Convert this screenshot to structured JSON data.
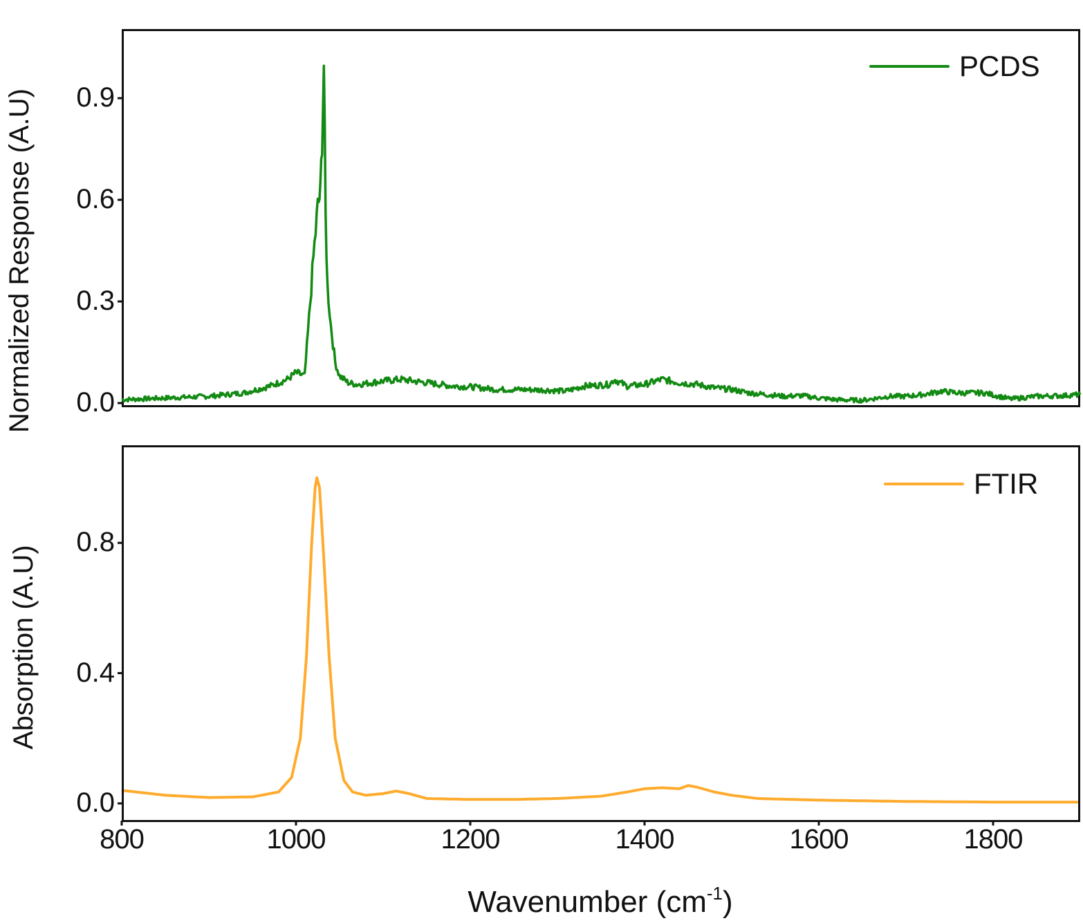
{
  "figure": {
    "xlabel_main": "Wavenumber (cm",
    "xlabel_sup": "-1",
    "xlabel_close": ")",
    "xticks": [
      "800",
      "1000",
      "1200",
      "1400",
      "1600",
      "1800"
    ]
  },
  "top_panel": {
    "ylabel": "Normalized Response (A.U)",
    "yticks": [
      "0.0",
      "0.3",
      "0.6",
      "0.9"
    ],
    "legend_label": "PCDS",
    "line_color": "#138a13"
  },
  "bottom_panel": {
    "ylabel": "Absorption (A.U)",
    "yticks": [
      "0.0",
      "0.4",
      "0.8"
    ],
    "legend_label": "FTIR",
    "line_color": "#ffab2e"
  },
  "chart_data": [
    {
      "type": "line",
      "title": "",
      "xlabel": "Wavenumber (cm-1)",
      "ylabel": "Normalized Response (A.U)",
      "xlim": [
        800,
        1900
      ],
      "ylim": [
        0,
        1.1
      ],
      "yticks": [
        0.0,
        0.3,
        0.6,
        0.9
      ],
      "grid": false,
      "legend_position": "upper right",
      "series": [
        {
          "name": "PCDS",
          "color": "#138a13",
          "x": [
            800,
            850,
            900,
            940,
            970,
            990,
            1000,
            1010,
            1015,
            1020,
            1025,
            1028,
            1030,
            1032,
            1034,
            1036,
            1040,
            1045,
            1050,
            1060,
            1070,
            1080,
            1100,
            1120,
            1150,
            1180,
            1200,
            1230,
            1260,
            1290,
            1310,
            1330,
            1360,
            1365,
            1380,
            1400,
            1420,
            1440,
            1460,
            1480,
            1500,
            1520,
            1540,
            1560,
            1580,
            1600,
            1620,
            1650,
            1680,
            1700,
            1720,
            1740,
            1760,
            1790,
            1820,
            1850,
            1880,
            1900
          ],
          "y": [
            0.01,
            0.015,
            0.02,
            0.03,
            0.05,
            0.07,
            0.09,
            0.08,
            0.25,
            0.43,
            0.58,
            0.62,
            0.78,
            1.0,
            0.55,
            0.35,
            0.23,
            0.12,
            0.08,
            0.06,
            0.055,
            0.058,
            0.065,
            0.07,
            0.06,
            0.05,
            0.048,
            0.04,
            0.04,
            0.038,
            0.035,
            0.05,
            0.055,
            0.07,
            0.05,
            0.055,
            0.07,
            0.06,
            0.055,
            0.045,
            0.04,
            0.03,
            0.025,
            0.02,
            0.022,
            0.015,
            0.01,
            0.008,
            0.02,
            0.02,
            0.025,
            0.035,
            0.03,
            0.03,
            0.012,
            0.02,
            0.022,
            0.025
          ]
        }
      ]
    },
    {
      "type": "line",
      "title": "",
      "xlabel": "Wavenumber (cm-1)",
      "ylabel": "Absorption (A.U)",
      "xlim": [
        800,
        1900
      ],
      "ylim": [
        -0.05,
        1.05
      ],
      "yticks": [
        0.0,
        0.4,
        0.8
      ],
      "grid": false,
      "legend_position": "upper right",
      "series": [
        {
          "name": "FTIR",
          "color": "#ffab2e",
          "x": [
            800,
            850,
            900,
            950,
            980,
            995,
            1005,
            1012,
            1018,
            1022,
            1024,
            1027,
            1032,
            1038,
            1045,
            1055,
            1065,
            1080,
            1100,
            1115,
            1130,
            1150,
            1200,
            1250,
            1300,
            1350,
            1380,
            1400,
            1420,
            1440,
            1450,
            1460,
            1480,
            1500,
            1530,
            1570,
            1600,
            1650,
            1700,
            1750,
            1800,
            1850,
            1900
          ],
          "y": [
            0.04,
            0.025,
            0.018,
            0.02,
            0.035,
            0.08,
            0.2,
            0.45,
            0.8,
            0.97,
            1.0,
            0.97,
            0.75,
            0.45,
            0.2,
            0.07,
            0.035,
            0.025,
            0.03,
            0.038,
            0.03,
            0.015,
            0.012,
            0.012,
            0.015,
            0.022,
            0.035,
            0.045,
            0.048,
            0.045,
            0.055,
            0.05,
            0.035,
            0.025,
            0.015,
            0.012,
            0.01,
            0.008,
            0.006,
            0.005,
            0.004,
            0.004,
            0.004
          ]
        }
      ]
    }
  ]
}
